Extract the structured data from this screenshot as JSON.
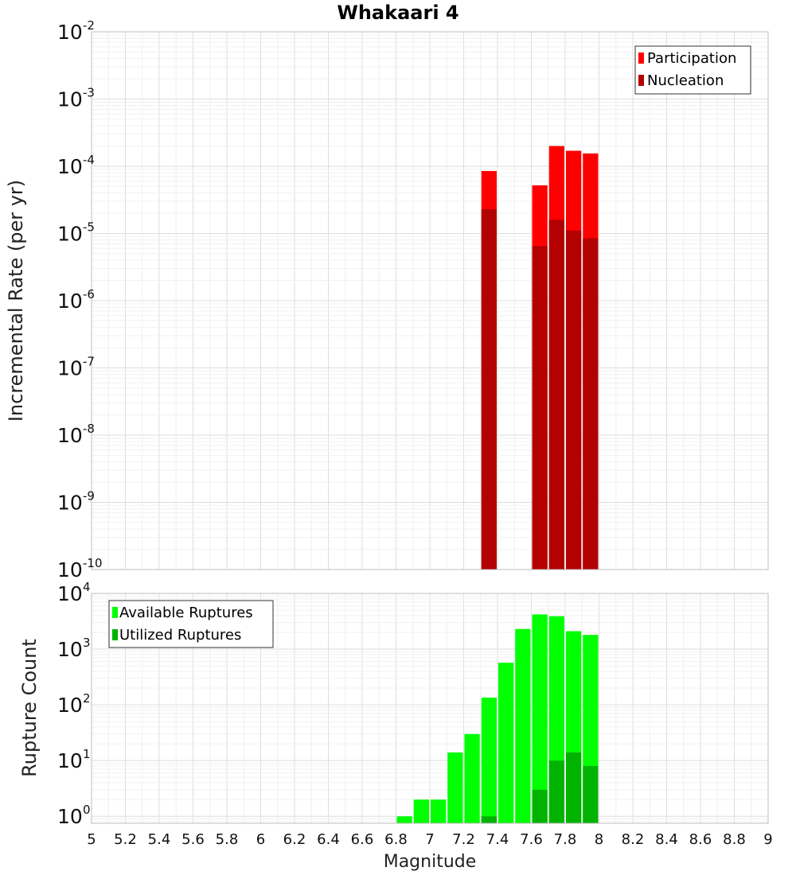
{
  "chart_data": [
    {
      "type": "bar",
      "name": "top",
      "title": "Whakaari 4",
      "xlabel": "",
      "ylabel": "Incremental Rate (per yr)",
      "yscale": "log",
      "ylim": [
        1e-10,
        0.01
      ],
      "xlim": [
        5,
        9
      ],
      "ytick_exponents": [
        -10,
        -9,
        -8,
        -7,
        -6,
        -5,
        -4,
        -3,
        -2
      ],
      "legend": {
        "position": "top-right",
        "entries": [
          "Participation",
          "Nucleation"
        ]
      },
      "bin_width": 0.1,
      "series": [
        {
          "name": "Participation",
          "color": "#ff0000",
          "x": [
            7.35,
            7.65,
            7.75,
            7.85,
            7.95
          ],
          "values": [
            8.5e-05,
            5.2e-05,
            0.0002,
            0.00017,
            0.000155
          ]
        },
        {
          "name": "Nucleation",
          "color": "#b30000",
          "x": [
            7.35,
            7.65,
            7.75,
            7.85,
            7.95
          ],
          "values": [
            2.3e-05,
            6.5e-06,
            1.6e-05,
            1.1e-05,
            8.5e-06
          ]
        }
      ]
    },
    {
      "type": "bar",
      "name": "bottom",
      "title": "",
      "xlabel": "Magnitude",
      "ylabel": "Rupture Count",
      "yscale": "log",
      "ylim": [
        0.75,
        10000
      ],
      "xlim": [
        5,
        9
      ],
      "ytick_exponents": [
        0,
        1,
        2,
        3,
        4
      ],
      "xticks": [
        "5",
        "5.2",
        "5.4",
        "5.6",
        "5.8",
        "6",
        "6.2",
        "6.4",
        "6.6",
        "6.8",
        "7",
        "7.2",
        "7.4",
        "7.6",
        "7.8",
        "8",
        "8.2",
        "8.4",
        "8.6",
        "8.8",
        "9"
      ],
      "legend": {
        "position": "top-left",
        "entries": [
          "Available Ruptures",
          "Utilized Ruptures"
        ]
      },
      "bin_width": 0.1,
      "series": [
        {
          "name": "Available Ruptures",
          "color": "#00ff00",
          "x": [
            6.85,
            6.95,
            7.05,
            7.15,
            7.25,
            7.35,
            7.45,
            7.55,
            7.65,
            7.75,
            7.85,
            7.95
          ],
          "values": [
            1,
            2,
            2,
            14,
            30,
            135,
            570,
            2300,
            4200,
            3900,
            2100,
            1800
          ]
        },
        {
          "name": "Utilized Ruptures",
          "color": "#00b300",
          "x": [
            7.35,
            7.65,
            7.75,
            7.85,
            7.95
          ],
          "values": [
            1,
            3,
            10,
            14,
            8
          ]
        }
      ]
    }
  ]
}
